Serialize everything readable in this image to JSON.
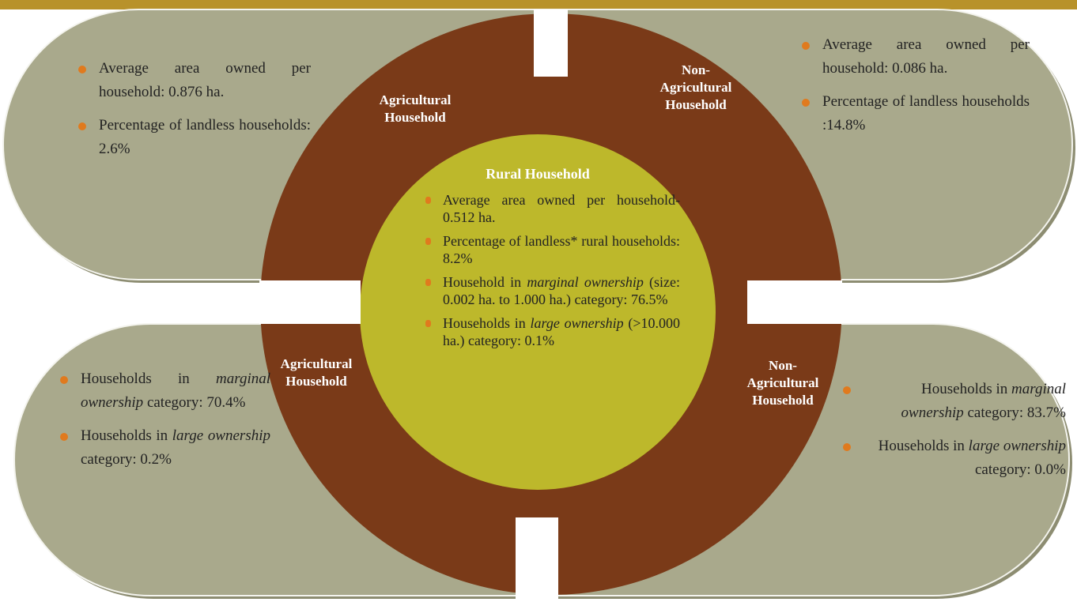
{
  "center": {
    "title": "Rural Household",
    "bullets": [
      [
        {
          "text": "Average area owned per household- 0.512 ha."
        }
      ],
      [
        {
          "text": "Percentage of landless* rural households: 8.2%"
        }
      ],
      [
        {
          "text": "Household in "
        },
        {
          "text": "marginal ownership",
          "italic": true
        },
        {
          "text": " (size: 0.002 ha. to 1.000 ha.) category: 76.5%"
        }
      ],
      [
        {
          "text": "Households in "
        },
        {
          "text": "large ownership",
          "italic": true
        },
        {
          "text": " (>10.000 ha.) category: 0.1%"
        }
      ]
    ]
  },
  "ring_labels": {
    "top_left": "Agricultural Household",
    "top_right": "Non-Agricultural Household",
    "bottom_left": "Agricultural Household",
    "bottom_right": "Non-Agricultural Household"
  },
  "panels": {
    "top_left": [
      [
        {
          "text": "Average area owned per household: 0.876 ha."
        }
      ],
      [
        {
          "text": "Percentage of landless households: 2.6%"
        }
      ]
    ],
    "top_right": [
      [
        {
          "text": "Average area owned per household: 0.086 ha."
        }
      ],
      [
        {
          "text": "Percentage of landless households :14.8%"
        }
      ]
    ],
    "bottom_left": [
      [
        {
          "text": "Households in "
        },
        {
          "text": "marginal ownership",
          "italic": true
        },
        {
          "text": " category: 70.4%"
        }
      ],
      [
        {
          "text": "Households in "
        },
        {
          "text": "large ownership",
          "italic": true
        },
        {
          "text": " category: 0.2%"
        }
      ]
    ],
    "bottom_right": [
      [
        {
          "text": "Households in "
        },
        {
          "text": "marginal ownership",
          "italic": true
        },
        {
          "text": " category: 83.7%"
        }
      ],
      [
        {
          "text": "Households in "
        },
        {
          "text": "large ownership",
          "italic": true
        },
        {
          "text": " category: 0.0%"
        }
      ]
    ]
  }
}
